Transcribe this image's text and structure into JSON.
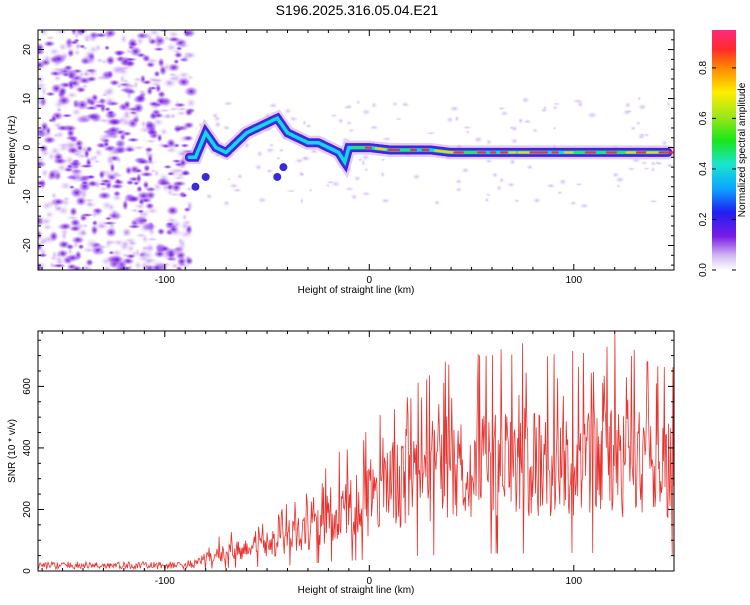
{
  "title": "S196.2025.316.05.04.E21",
  "chart_data": [
    {
      "type": "heatmap",
      "xlabel": "Height of straight line (km)",
      "ylabel": "Frequency (Hz)",
      "xlim": [
        -162,
        149
      ],
      "ylim": [
        -25,
        24
      ],
      "xticks": [
        -100,
        0,
        100
      ],
      "yticks": [
        20,
        10,
        0,
        -10,
        -20
      ],
      "colorbar": {
        "label": "Normalized spectral amplitude",
        "range": [
          0.0,
          0.95
        ],
        "ticks": [
          0.0,
          0.2,
          0.4,
          0.6,
          0.8
        ]
      },
      "ridge": {
        "x": [
          -88,
          -85,
          -80,
          -75,
          -70,
          -65,
          -60,
          -55,
          -50,
          -45,
          -40,
          -35,
          -30,
          -25,
          -20,
          -15,
          -12,
          -10,
          -5,
          0,
          10,
          20,
          30,
          40,
          60,
          80,
          100,
          120,
          140,
          146
        ],
        "y": [
          -2,
          -2,
          3,
          0,
          -1,
          1,
          3,
          4,
          5,
          6,
          3,
          2,
          1,
          1,
          0,
          -1,
          -3,
          0,
          0,
          0,
          -0.5,
          -0.5,
          -0.5,
          -1,
          -1,
          -1,
          -1,
          -1,
          -1,
          -1
        ]
      }
    },
    {
      "type": "line",
      "xlabel": "Height of straight line (km)",
      "ylabel": "SNR (10 * v/v)",
      "xlim": [
        -162,
        149
      ],
      "ylim": [
        0,
        780
      ],
      "xticks": [
        -100,
        0,
        100
      ],
      "yticks": [
        0,
        200,
        400,
        600
      ],
      "series": [
        {
          "name": "SNR",
          "color": "#e8322e",
          "envelope_x": [
            -162,
            -120,
            -95,
            -85,
            -75,
            -60,
            -45,
            -30,
            -20,
            -10,
            0,
            10,
            20,
            30,
            40,
            60,
            80,
            100,
            120,
            140,
            149
          ],
          "envelope_y": [
            20,
            20,
            20,
            25,
            60,
            80,
            100,
            150,
            200,
            220,
            250,
            300,
            320,
            340,
            360,
            380,
            380,
            390,
            390,
            380,
            350
          ],
          "peaks": [
            {
              "x": 75,
              "y": 740
            },
            {
              "x": 120,
              "y": 770
            },
            {
              "x": 57,
              "y": 700
            },
            {
              "x": 136,
              "y": 680
            },
            {
              "x": 37,
              "y": 680
            }
          ]
        }
      ]
    }
  ]
}
